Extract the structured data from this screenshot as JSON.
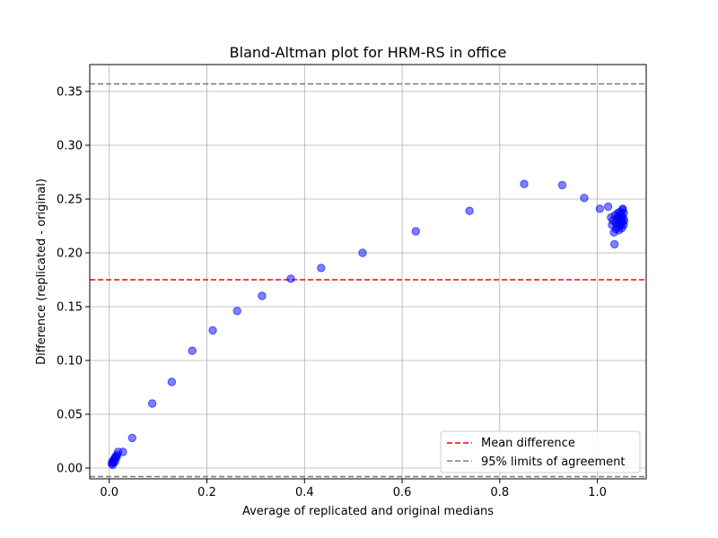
{
  "chart_data": {
    "type": "scatter",
    "title": "Bland-Altman plot for HRM-RS in office",
    "xlabel": "Average of replicated and original medians",
    "ylabel": "Difference (replicated - original)",
    "xlim": [
      -0.04,
      1.1
    ],
    "ylim": [
      -0.01,
      0.375
    ],
    "xticks": [
      0.0,
      0.2,
      0.4,
      0.6,
      0.8,
      1.0
    ],
    "xtick_labels": [
      "0.0",
      "0.2",
      "0.4",
      "0.6",
      "0.8",
      "1.0"
    ],
    "yticks": [
      0.0,
      0.05,
      0.1,
      0.15,
      0.2,
      0.25,
      0.3,
      0.35
    ],
    "ytick_labels": [
      "0.00",
      "0.05",
      "0.10",
      "0.15",
      "0.20",
      "0.25",
      "0.30",
      "0.35"
    ],
    "grid": true,
    "point_color": "#0000ff",
    "mean_color": "#ff0000",
    "limit_color": "#808080",
    "mean_difference": 0.175,
    "limits_of_agreement": [
      -0.008,
      0.357
    ],
    "legend_position": "lower-right",
    "legend": {
      "mean_label": "Mean difference",
      "limits_label": "95% limits of agreement"
    },
    "points": [
      [
        0.005,
        0.004
      ],
      [
        0.006,
        0.006
      ],
      [
        0.008,
        0.005
      ],
      [
        0.009,
        0.007
      ],
      [
        0.01,
        0.008
      ],
      [
        0.011,
        0.009
      ],
      [
        0.012,
        0.006
      ],
      [
        0.013,
        0.011
      ],
      [
        0.015,
        0.01
      ],
      [
        0.016,
        0.012
      ],
      [
        0.018,
        0.015
      ],
      [
        0.007,
        0.003
      ],
      [
        0.028,
        0.015
      ],
      [
        0.047,
        0.028
      ],
      [
        0.088,
        0.06
      ],
      [
        0.128,
        0.08
      ],
      [
        0.17,
        0.109
      ],
      [
        0.212,
        0.128
      ],
      [
        0.262,
        0.146
      ],
      [
        0.313,
        0.16
      ],
      [
        0.372,
        0.176
      ],
      [
        0.434,
        0.186
      ],
      [
        0.519,
        0.2
      ],
      [
        0.628,
        0.22
      ],
      [
        0.738,
        0.239
      ],
      [
        0.85,
        0.264
      ],
      [
        0.928,
        0.263
      ],
      [
        0.973,
        0.251
      ],
      [
        1.005,
        0.241
      ],
      [
        1.022,
        0.243
      ],
      [
        1.028,
        0.233
      ],
      [
        1.03,
        0.226
      ],
      [
        1.032,
        0.23
      ],
      [
        1.034,
        0.219
      ],
      [
        1.035,
        0.208
      ],
      [
        1.036,
        0.235
      ],
      [
        1.038,
        0.228
      ],
      [
        1.04,
        0.232
      ],
      [
        1.04,
        0.224
      ],
      [
        1.042,
        0.237
      ],
      [
        1.043,
        0.227
      ],
      [
        1.044,
        0.221
      ],
      [
        1.045,
        0.233
      ],
      [
        1.046,
        0.229
      ],
      [
        1.047,
        0.225
      ],
      [
        1.048,
        0.236
      ],
      [
        1.049,
        0.231
      ],
      [
        1.05,
        0.223
      ],
      [
        1.05,
        0.234
      ],
      [
        1.051,
        0.228
      ],
      [
        1.052,
        0.24
      ],
      [
        1.053,
        0.232
      ],
      [
        1.054,
        0.226
      ],
      [
        1.054,
        0.237
      ],
      [
        1.055,
        0.23
      ],
      [
        1.052,
        0.241
      ],
      [
        1.048,
        0.228
      ],
      [
        1.044,
        0.234
      ],
      [
        1.038,
        0.222
      ],
      [
        1.046,
        0.238
      ]
    ]
  }
}
